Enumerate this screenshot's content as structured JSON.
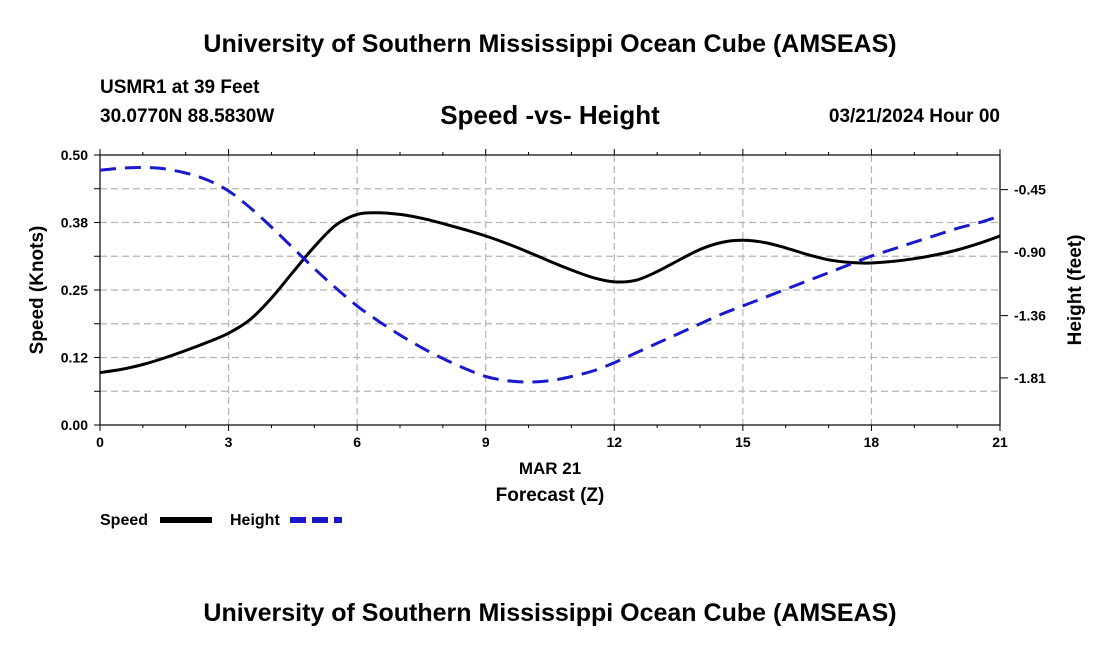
{
  "header": {
    "title": "University of Southern Mississippi Ocean Cube (AMSEAS)",
    "station": "USMR1 at 39 Feet",
    "coords": "30.0770N  88.5830W",
    "subtitle": "Speed -vs- Height",
    "date": "03/21/2024 Hour 00"
  },
  "footer": {
    "title": "University of Southern Mississippi Ocean Cube (AMSEAS)"
  },
  "chart_data": {
    "type": "line",
    "title": "Speed -vs- Height",
    "xlabel_date": "MAR 21",
    "xlabel": "Forecast (Z)",
    "ylabel": "Speed (Knots)",
    "y2label": "Height (feet)",
    "xlim": [
      0,
      21
    ],
    "ylim": [
      0,
      0.5
    ],
    "y2lim": [
      -2.15,
      -0.2
    ],
    "x_ticks": [
      0,
      3,
      6,
      9,
      12,
      15,
      18,
      21
    ],
    "x_tick_labels": [
      "0",
      "3",
      "6",
      "9",
      "12",
      "15",
      "18",
      "21"
    ],
    "y_ticks": [
      0,
      0.125,
      0.25,
      0.375,
      0.5
    ],
    "y_tick_labels": [
      "0.00",
      "0.12",
      "0.25",
      "0.38",
      "0.50"
    ],
    "y2_ticks": [
      -0.45,
      -0.9,
      -1.36,
      -1.81
    ],
    "y2_tick_labels": [
      "-0.45",
      "-0.90",
      "-1.36",
      "-1.81"
    ],
    "grid": true,
    "series": [
      {
        "name": "Speed",
        "axis": "left",
        "color": "#000000",
        "style": "solid",
        "x": [
          0,
          0.5,
          1,
          1.5,
          2,
          2.5,
          3,
          3.5,
          4,
          4.5,
          5,
          5.5,
          6,
          6.5,
          7,
          7.5,
          8,
          8.5,
          9,
          9.5,
          10,
          10.5,
          11,
          11.5,
          12,
          12.5,
          13,
          13.5,
          14,
          14.5,
          15,
          15.5,
          16,
          16.5,
          17,
          17.5,
          18,
          18.5,
          19,
          19.5,
          20,
          20.5,
          21
        ],
        "values": [
          0.097,
          0.103,
          0.112,
          0.124,
          0.138,
          0.153,
          0.17,
          0.195,
          0.235,
          0.283,
          0.33,
          0.37,
          0.39,
          0.393,
          0.39,
          0.383,
          0.373,
          0.362,
          0.35,
          0.336,
          0.32,
          0.303,
          0.287,
          0.273,
          0.265,
          0.268,
          0.284,
          0.305,
          0.325,
          0.338,
          0.342,
          0.338,
          0.328,
          0.316,
          0.306,
          0.301,
          0.3,
          0.303,
          0.308,
          0.315,
          0.324,
          0.336,
          0.35
        ]
      },
      {
        "name": "Height",
        "axis": "right",
        "color": "#1a1acc",
        "style": "dashed",
        "x": [
          0,
          0.5,
          1,
          1.5,
          2,
          2.5,
          3,
          3.5,
          4,
          4.5,
          5,
          5.5,
          6,
          6.5,
          7,
          7.5,
          8,
          8.5,
          9,
          9.5,
          10,
          10.5,
          11,
          11.5,
          12,
          12.5,
          13,
          13.5,
          14,
          14.5,
          15,
          15.5,
          16,
          16.5,
          17,
          17.5,
          18,
          18.5,
          19,
          19.5,
          20,
          20.5,
          21
        ],
        "values": [
          -0.31,
          -0.295,
          -0.29,
          -0.3,
          -0.33,
          -0.38,
          -0.46,
          -0.58,
          -0.72,
          -0.87,
          -1.02,
          -1.16,
          -1.29,
          -1.4,
          -1.5,
          -1.59,
          -1.67,
          -1.74,
          -1.8,
          -1.83,
          -1.84,
          -1.83,
          -1.8,
          -1.76,
          -1.7,
          -1.63,
          -1.56,
          -1.49,
          -1.42,
          -1.35,
          -1.29,
          -1.23,
          -1.17,
          -1.11,
          -1.05,
          -0.99,
          -0.93,
          -0.88,
          -0.83,
          -0.78,
          -0.73,
          -0.69,
          -0.64
        ]
      }
    ],
    "legend": {
      "placement": "bottom-left",
      "items": [
        "Speed",
        "Height"
      ]
    }
  }
}
